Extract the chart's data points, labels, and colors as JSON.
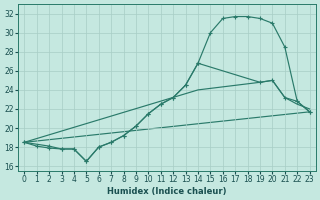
{
  "xlabel": "Humidex (Indice chaleur)",
  "xlim": [
    -0.5,
    23.5
  ],
  "ylim": [
    15.5,
    33.0
  ],
  "xticks": [
    0,
    1,
    2,
    3,
    4,
    5,
    6,
    7,
    8,
    9,
    10,
    11,
    12,
    13,
    14,
    15,
    16,
    17,
    18,
    19,
    20,
    21,
    22,
    23
  ],
  "yticks": [
    16,
    18,
    20,
    22,
    24,
    26,
    28,
    30,
    32
  ],
  "bg_color": "#c5e8e0",
  "grid_color": "#a8cec6",
  "line_color": "#2a7a6a",
  "curve1_x": [
    0,
    1,
    2,
    3,
    4,
    5,
    6,
    7,
    8,
    9,
    10,
    11,
    12,
    13,
    14,
    15,
    16,
    17,
    18,
    19,
    20,
    21,
    22,
    23
  ],
  "curve1_y": [
    18.5,
    18.1,
    17.9,
    17.8,
    17.8,
    16.5,
    18.0,
    18.5,
    19.2,
    20.2,
    21.5,
    22.5,
    23.2,
    24.5,
    26.8,
    30.0,
    31.5,
    31.7,
    31.7,
    31.5,
    31.0,
    28.5,
    22.8,
    21.7
  ],
  "curve2_x": [
    0,
    2,
    3,
    4,
    5,
    6,
    7,
    8,
    9,
    10,
    11,
    12,
    13,
    14,
    19,
    20,
    21,
    22,
    23
  ],
  "curve2_y": [
    18.5,
    18.1,
    17.8,
    17.8,
    16.5,
    18.0,
    18.5,
    19.2,
    20.2,
    21.5,
    22.5,
    23.2,
    24.5,
    26.8,
    24.8,
    25.0,
    23.2,
    22.8,
    21.7
  ],
  "curve3_x": [
    0,
    14,
    19,
    20,
    21,
    22,
    23
  ],
  "curve3_y": [
    18.5,
    24.0,
    24.8,
    25.0,
    23.2,
    22.5,
    22.0
  ],
  "curve4_x": [
    0,
    23
  ],
  "curve4_y": [
    18.5,
    21.7
  ]
}
